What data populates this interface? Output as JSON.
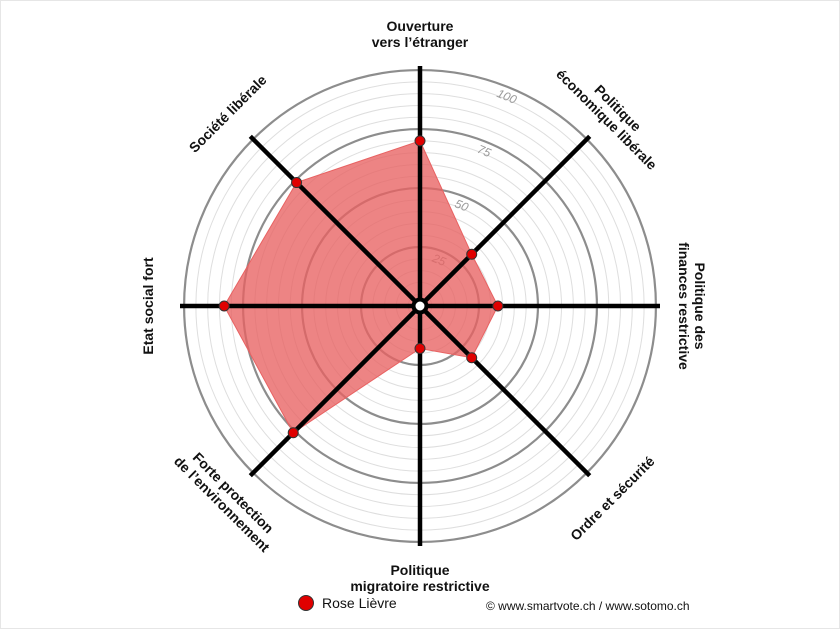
{
  "chart_data": {
    "type": "radar",
    "axes": [
      {
        "label": [
          "Ouverture",
          "vers l’étranger"
        ],
        "value": 70
      },
      {
        "label": [
          "Politique",
          "économique libérale"
        ],
        "value": 31
      },
      {
        "label": [
          "Politique des",
          "finances restrictive"
        ],
        "value": 33
      },
      {
        "label": [
          "Ordre et sécurité"
        ],
        "value": 31
      },
      {
        "label": [
          "Politique",
          "migratoire restrictive"
        ],
        "value": 18
      },
      {
        "label": [
          "Forte protection",
          "de l’environnement"
        ],
        "value": 76
      },
      {
        "label": [
          "Etat social fort"
        ],
        "value": 83
      },
      {
        "label": [
          "Société libérale"
        ],
        "value": 74
      }
    ],
    "r_range": [
      0,
      100
    ],
    "ticks": [
      "25",
      "50",
      "75",
      "100"
    ],
    "series": [
      {
        "name": "Rose Lièvre",
        "color": "#e00000",
        "fill": "#e86262"
      }
    ],
    "legend_position": "bottom"
  },
  "footer": {
    "copyright": "© www.smartvote.ch / www.sotomo.ch"
  }
}
